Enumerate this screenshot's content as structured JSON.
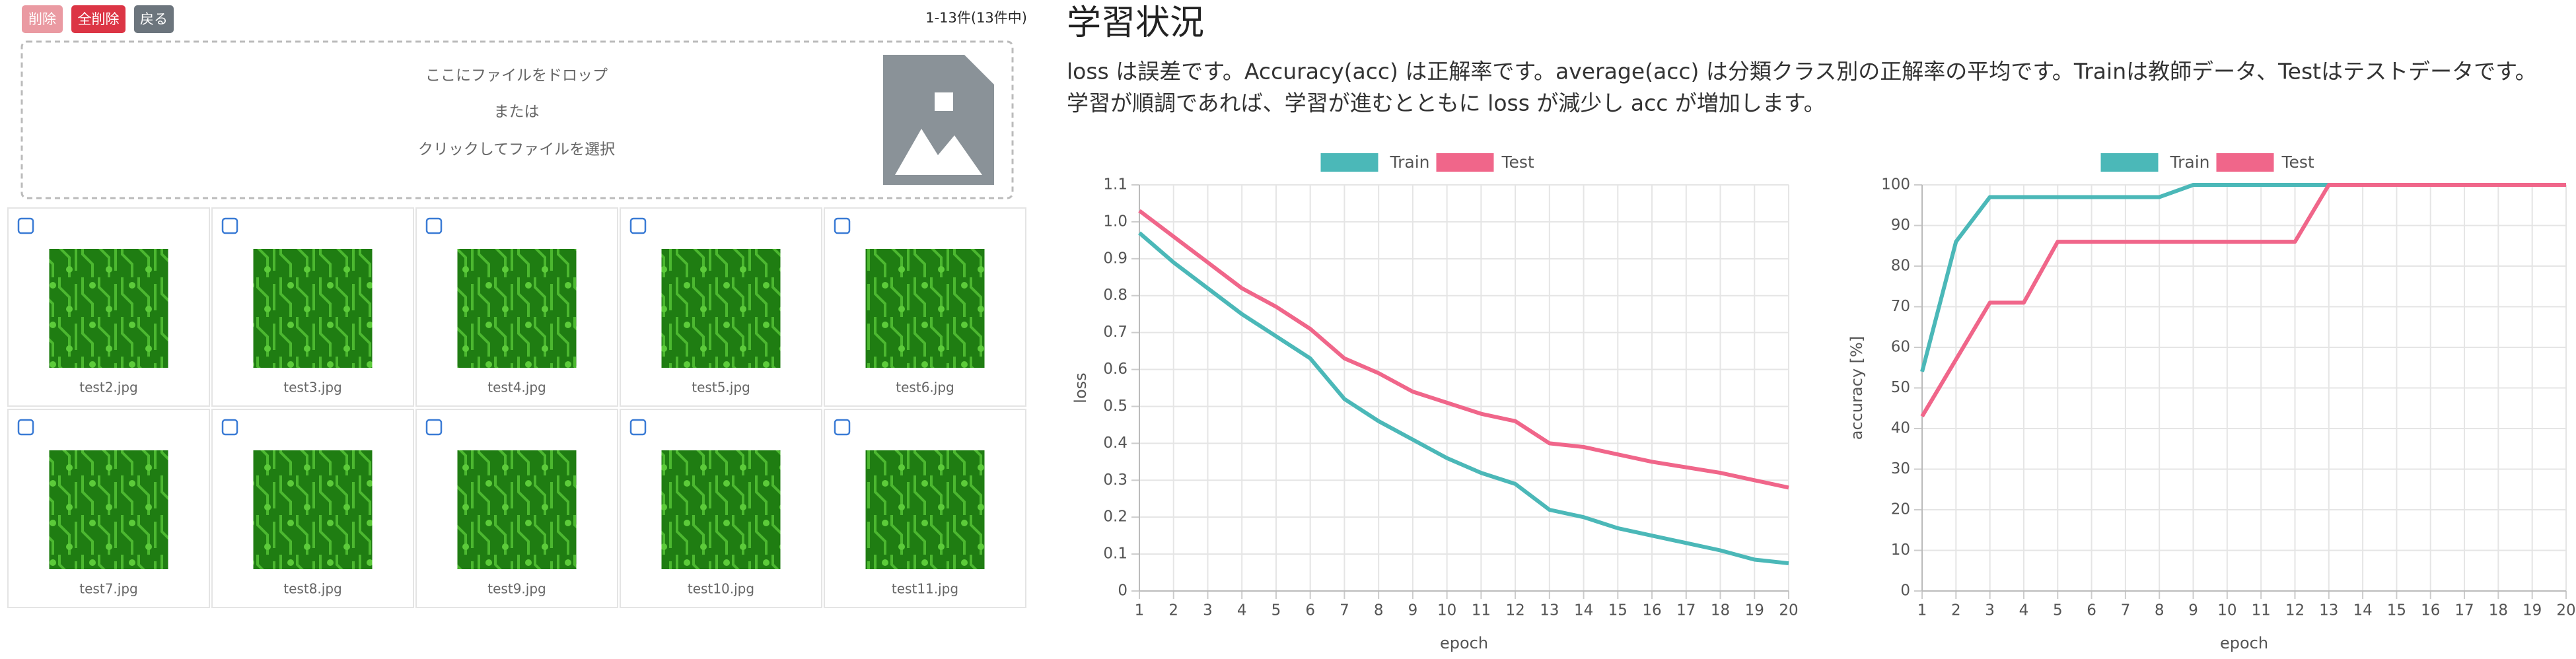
{
  "toolbar": {
    "buttons": [
      "削除",
      "全削除",
      "戻る"
    ],
    "count": "1-13件(13件中)"
  },
  "dropzone": {
    "lines": [
      "ここにファイルをドロップ",
      "または",
      "クリックしてファイルを選択"
    ]
  },
  "files": [
    "test2.jpg",
    "test3.jpg",
    "test4.jpg",
    "test5.jpg",
    "test6.jpg",
    "test7.jpg",
    "test8.jpg",
    "test9.jpg",
    "test10.jpg",
    "test11.jpg"
  ],
  "heading": "学習状況",
  "description": [
    "loss は誤差です。Accuracy(acc) は正解率です。average(acc) は分類クラス別の正解率の平均です。Trainは教師データ、Testはテストデータです。",
    "学習が順調であれば、学習が進むとともに loss が減少し acc が増加します。"
  ],
  "chart_data": [
    {
      "type": "line",
      "x_label": "epoch",
      "y_label": "loss",
      "x": [
        1,
        2,
        3,
        4,
        5,
        6,
        7,
        8,
        9,
        10,
        11,
        12,
        13,
        14,
        15,
        16,
        17,
        18,
        19,
        20
      ],
      "xlim": [
        1,
        20
      ],
      "xticks": [
        1,
        2,
        3,
        4,
        5,
        6,
        7,
        8,
        9,
        10,
        11,
        12,
        13,
        14,
        15,
        16,
        17,
        18,
        19,
        20
      ],
      "ylim": [
        0,
        1.1
      ],
      "yticks": [
        0,
        0.1,
        0.2,
        0.3,
        0.4,
        0.5,
        0.6,
        0.7,
        0.8,
        0.9,
        {
          "value": 1,
          "label": "1.0"
        },
        1.1
      ],
      "grid": true,
      "legend": "top",
      "series": [
        {
          "name": "Train",
          "color": "#4bb8b8",
          "values": [
            0.97,
            0.89,
            0.82,
            0.75,
            0.69,
            0.63,
            0.52,
            0.46,
            0.41,
            0.36,
            0.32,
            0.29,
            0.22,
            0.2,
            0.17,
            0.15,
            0.13,
            0.11,
            0.085,
            0.075
          ]
        },
        {
          "name": "Test",
          "color": "#f0668a",
          "values": [
            1.03,
            0.96,
            0.89,
            0.82,
            0.77,
            0.71,
            0.63,
            0.59,
            0.54,
            0.51,
            0.48,
            0.46,
            0.4,
            0.39,
            0.37,
            0.35,
            0.335,
            0.32,
            0.3,
            0.28
          ]
        }
      ]
    },
    {
      "type": "line",
      "x_label": "epoch",
      "y_label": "accuracy [%]",
      "x": [
        1,
        2,
        3,
        4,
        5,
        6,
        7,
        8,
        9,
        10,
        11,
        12,
        13,
        14,
        15,
        16,
        17,
        18,
        19,
        20
      ],
      "xlim": [
        1,
        20
      ],
      "xticks": [
        1,
        2,
        3,
        4,
        5,
        6,
        7,
        8,
        9,
        10,
        11,
        12,
        13,
        14,
        15,
        16,
        17,
        18,
        19,
        20
      ],
      "ylim": [
        0,
        100
      ],
      "yticks": [
        0,
        10,
        20,
        30,
        40,
        50,
        60,
        70,
        80,
        90,
        100
      ],
      "grid": true,
      "legend": "top",
      "series": [
        {
          "name": "Train",
          "color": "#4bb8b8",
          "values": [
            54,
            86,
            97,
            97,
            97,
            97,
            97,
            97,
            100,
            100,
            100,
            100,
            100,
            100,
            100,
            100,
            100,
            100,
            100,
            100
          ]
        },
        {
          "name": "Test",
          "color": "#f0668a",
          "values": [
            43,
            57,
            71,
            71,
            86,
            86,
            86,
            86,
            86,
            86,
            86,
            86,
            100,
            100,
            100,
            100,
            100,
            100,
            100,
            100
          ]
        }
      ]
    }
  ]
}
